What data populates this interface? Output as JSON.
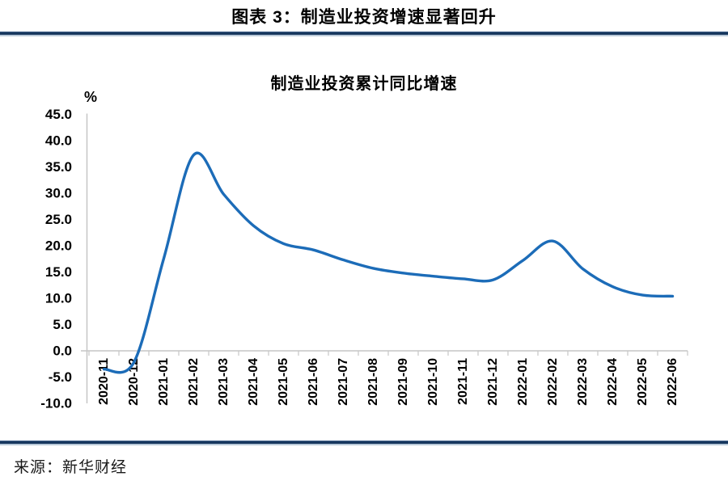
{
  "page": {
    "title": "图表 3：制造业投资增速显著回升",
    "source_note": "来源：新华财经"
  },
  "chart_data": {
    "type": "line",
    "title": "制造业投资累计同比增速",
    "y_unit_label": "%",
    "xlabel": "",
    "ylabel": "%",
    "categories": [
      "2020-11",
      "2020-12",
      "2021-01",
      "2021-02",
      "2021-03",
      "2021-04",
      "2021-05",
      "2021-06",
      "2021-07",
      "2021-08",
      "2021-09",
      "2021-10",
      "2021-11",
      "2021-12",
      "2022-01",
      "2022-02",
      "2022-03",
      "2022-04",
      "2022-05",
      "2022-06"
    ],
    "series": [
      {
        "name": "制造业投资累计同比增速",
        "values": [
          -3.5,
          -2.2,
          17.6,
          37.3,
          29.8,
          23.8,
          20.4,
          19.2,
          17.3,
          15.7,
          14.8,
          14.2,
          13.7,
          13.5,
          17.2,
          20.9,
          15.6,
          12.2,
          10.6,
          10.4
        ]
      }
    ],
    "ylim": [
      -10,
      45
    ],
    "yticks": [
      45,
      40,
      35,
      30,
      25,
      20,
      15,
      10,
      5,
      0,
      -5,
      -10
    ],
    "ytick_labels": [
      "45.0",
      "40.0",
      "35.0",
      "30.0",
      "25.0",
      "20.0",
      "15.0",
      "10.0",
      "5.0",
      "0.0",
      "-5.0",
      "-10.0"
    ],
    "xtick_rotation_deg": 90,
    "grid": false,
    "legend_position": "none",
    "smooth": true,
    "line_color": "#1c6cb8",
    "axis_color": "#c6c6c6",
    "divider_color": "#17375e"
  }
}
